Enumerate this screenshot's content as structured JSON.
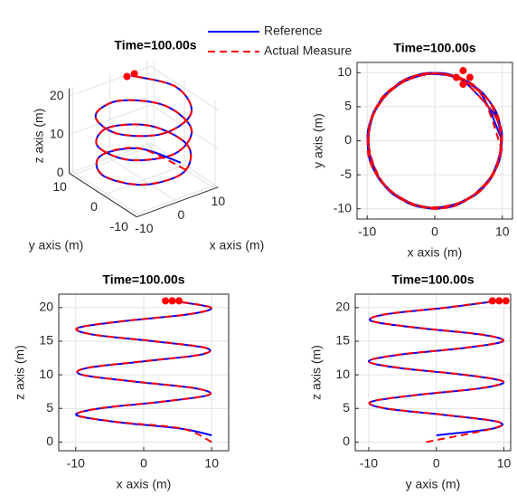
{
  "chart_data": [
    {
      "type": "line3d",
      "title": "Time=100.00s",
      "xlabel": "x axis (m)",
      "ylabel": "y axis (m)",
      "zlabel": "z axis (m)",
      "xlim": [
        -11,
        11
      ],
      "ylim": [
        -11,
        11
      ],
      "zlim": [
        0,
        22
      ],
      "xticks": [
        -10,
        0,
        10
      ],
      "yticks": [
        -10,
        0,
        10
      ],
      "zticks": [
        0,
        10,
        20
      ],
      "grid": true,
      "legend": "top",
      "series": [
        {
          "name": "Reference",
          "color": "#0000ff",
          "style": "solid",
          "x": [
            10.0,
            5.4,
            -4.2,
            -9.9,
            -6.5,
            2.8,
            9.6,
            7.5,
            -1.5,
            -9.1,
            -8.4,
            0.0,
            8.4,
            9.1,
            1.4,
            -7.6,
            -9.6,
            -2.8,
            6.6,
            9.9,
            4.1
          ],
          "y": [
            0.0,
            8.4,
            9.1,
            1.4,
            -7.6,
            -9.6,
            -2.8,
            6.6,
            9.9,
            4.1,
            -5.4,
            -10.0,
            -5.4,
            4.2,
            9.9,
            6.5,
            -2.9,
            -9.6,
            -7.5,
            1.5,
            9.1
          ],
          "z": [
            1,
            2,
            3,
            4,
            5,
            6,
            7,
            8,
            9,
            10,
            11,
            12,
            13,
            14,
            15,
            16,
            17,
            18,
            19,
            20,
            21
          ]
        },
        {
          "name": "Actual Measure",
          "color": "#ff0000",
          "style": "dashed",
          "x": [
            10.0,
            5.6,
            -4.0,
            -9.8,
            -6.6,
            2.6,
            9.5,
            7.6,
            -1.3,
            -9.0,
            -8.5,
            -0.2,
            8.3,
            9.2,
            1.6,
            -7.5,
            -9.7,
            -3.0,
            6.5,
            9.9,
            4.3
          ],
          "y": [
            -1.5,
            8.3,
            9.2,
            1.6,
            -7.4,
            -9.7,
            -3.0,
            6.4,
            9.9,
            4.3,
            -5.2,
            -10.0,
            -5.6,
            4.0,
            9.8,
            6.7,
            -2.7,
            -9.5,
            -7.6,
            1.3,
            9.0
          ],
          "z": [
            0,
            2,
            3,
            4,
            5,
            6,
            7,
            8,
            9,
            10,
            11,
            12,
            13,
            14,
            15,
            16,
            17,
            18,
            19,
            20,
            21
          ]
        }
      ],
      "markers": {
        "color": "#ff0000",
        "x": [
          3.2,
          5.2
        ],
        "y": [
          9.3,
          9.3
        ],
        "z": [
          21,
          21
        ]
      }
    },
    {
      "type": "line",
      "title": "Time=100.00s",
      "xlabel": "x axis (m)",
      "ylabel": "y axis (m)",
      "xlim": [
        -11.5,
        11.5
      ],
      "ylim": [
        -11.5,
        11.5
      ],
      "xticks": [
        -10,
        0,
        10
      ],
      "yticks": [
        -10,
        -5,
        0,
        5,
        10
      ],
      "grid": true,
      "series": [
        {
          "color": "#0000ff",
          "style": "solid",
          "x": [
            10.0,
            5.4,
            -4.2,
            -9.9,
            -6.5,
            2.8,
            9.6,
            7.5,
            -1.5,
            -9.1,
            -8.4,
            0.0,
            8.4,
            9.1,
            1.4,
            -7.6,
            -9.6,
            -2.8,
            6.6,
            9.9,
            4.1
          ],
          "values": [
            0.0,
            8.4,
            9.1,
            1.4,
            -7.6,
            -9.6,
            -2.8,
            6.6,
            9.9,
            4.1,
            -5.4,
            -10.0,
            -5.4,
            4.2,
            9.9,
            6.5,
            -2.9,
            -9.6,
            -7.5,
            1.5,
            9.1
          ]
        },
        {
          "color": "#ff0000",
          "style": "dashed",
          "x": [
            10.0,
            5.6,
            -4.0,
            -9.8,
            -6.6,
            2.6,
            9.5,
            7.6,
            -1.3,
            -9.0,
            -8.5,
            -0.2,
            8.3,
            9.2,
            1.6,
            -7.5,
            -9.7,
            -3.0,
            6.5,
            9.9,
            4.3
          ],
          "values": [
            -1.5,
            8.3,
            9.2,
            1.6,
            -7.4,
            -9.7,
            -3.0,
            6.4,
            9.9,
            4.3,
            -5.2,
            -10.0,
            -5.6,
            4.0,
            9.8,
            6.7,
            -2.7,
            -9.5,
            -7.6,
            1.3,
            9.0
          ]
        }
      ],
      "markers": {
        "color": "#ff0000",
        "x": [
          3.2,
          4.2,
          5.2,
          4.2
        ],
        "values": [
          9.3,
          10.3,
          9.3,
          8.3
        ]
      }
    },
    {
      "type": "line",
      "title": "Time=100.00s",
      "xlabel": "x axis (m)",
      "ylabel": "z axis (m)",
      "xlim": [
        -12.5,
        12.5
      ],
      "ylim": [
        -1.3,
        22
      ],
      "xticks": [
        -10,
        0,
        10
      ],
      "yticks": [
        0,
        5,
        10,
        15,
        20
      ],
      "grid": true,
      "series": [
        {
          "color": "#0000ff",
          "style": "solid",
          "x": [
            10.0,
            5.4,
            -4.2,
            -9.9,
            -6.5,
            2.8,
            9.6,
            7.5,
            -1.5,
            -9.1,
            -8.4,
            0.0,
            8.4,
            9.1,
            1.4,
            -7.6,
            -9.6,
            -2.8,
            6.6,
            9.9,
            4.1
          ],
          "values": [
            1,
            2,
            3,
            4,
            5,
            6,
            7,
            8,
            9,
            10,
            11,
            12,
            13,
            14,
            15,
            16,
            17,
            18,
            19,
            20,
            21
          ]
        },
        {
          "color": "#ff0000",
          "style": "dashed",
          "x": [
            10.0,
            5.6,
            -4.0,
            -9.8,
            -6.6,
            2.6,
            9.5,
            7.6,
            -1.3,
            -9.0,
            -8.5,
            -0.2,
            8.3,
            9.2,
            1.6,
            -7.5,
            -9.7,
            -3.0,
            6.5,
            9.9,
            4.3
          ],
          "values": [
            0,
            2,
            3,
            4,
            5,
            6,
            7,
            8,
            9,
            10,
            11,
            12,
            13,
            14,
            15,
            16,
            17,
            18,
            19,
            20,
            21
          ]
        }
      ],
      "markers": {
        "color": "#ff0000",
        "x": [
          3.2,
          4.2,
          5.2
        ],
        "values": [
          21,
          21,
          21
        ]
      }
    },
    {
      "type": "line",
      "title": "Time=100.00s",
      "xlabel": "y axis (m)",
      "ylabel": "z axis (m)",
      "xlim": [
        -12,
        11
      ],
      "ylim": [
        -1.3,
        22
      ],
      "xticks": [
        -10,
        0,
        10
      ],
      "yticks": [
        0,
        5,
        10,
        15,
        20
      ],
      "grid": true,
      "series": [
        {
          "color": "#0000ff",
          "style": "solid",
          "x": [
            0.0,
            8.4,
            9.1,
            1.4,
            -7.6,
            -9.6,
            -2.8,
            6.6,
            9.9,
            4.1,
            -5.4,
            -10.0,
            -5.4,
            4.2,
            9.9,
            6.5,
            -2.9,
            -9.6,
            -7.5,
            1.5,
            9.1
          ],
          "values": [
            1,
            2,
            3,
            4,
            5,
            6,
            7,
            8,
            9,
            10,
            11,
            12,
            13,
            14,
            15,
            16,
            17,
            18,
            19,
            20,
            21
          ]
        },
        {
          "color": "#ff0000",
          "style": "dashed",
          "x": [
            -1.5,
            8.3,
            9.2,
            1.6,
            -7.4,
            -9.7,
            -3.0,
            6.4,
            9.9,
            4.3,
            -5.2,
            -10.0,
            -5.6,
            4.0,
            9.8,
            6.7,
            -2.7,
            -9.5,
            -7.6,
            1.3,
            9.0
          ],
          "values": [
            0,
            2,
            3,
            4,
            5,
            6,
            7,
            8,
            9,
            10,
            11,
            12,
            13,
            14,
            15,
            16,
            17,
            18,
            19,
            20,
            21
          ]
        }
      ],
      "markers": {
        "color": "#ff0000",
        "x": [
          8.3,
          9.3,
          10.3
        ],
        "values": [
          21,
          21,
          21
        ]
      }
    }
  ]
}
